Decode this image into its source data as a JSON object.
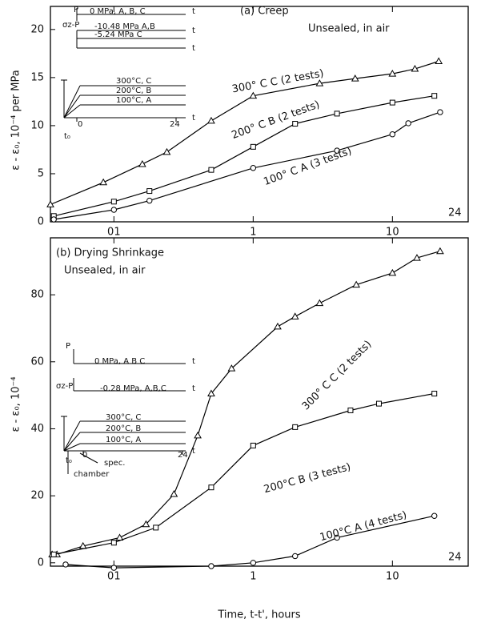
{
  "chart_data": [
    {
      "type": "line",
      "title": "(a)  Creep",
      "subtitle": "Unsealed, in air",
      "y_label": "ε - ε₀,  10⁻⁴ per MPa",
      "x_scale": "log",
      "color": "#000000",
      "xlim": [
        0.035,
        35
      ],
      "ylim": [
        0,
        22.4
      ],
      "xticks": [
        {
          "value": 0.1,
          "label": "01"
        },
        1,
        10
      ],
      "yticks": [
        0,
        5,
        10,
        15,
        20
      ],
      "series": [
        {
          "name": "300° C   C (2 tests)",
          "marker": "triangle",
          "x": [
            0.035,
            0.084,
            0.16,
            0.24,
            0.5,
            1,
            3,
            5.4,
            10,
            14.5,
            21.5
          ],
          "values": [
            1.8,
            4.1,
            6.0,
            7.25,
            10.5,
            13.1,
            14.4,
            14.9,
            15.4,
            15.9,
            16.7
          ]
        },
        {
          "name": "200° C   B (2 tests)",
          "marker": "square",
          "x": [
            0.037,
            0.1,
            0.18,
            0.5,
            1,
            2,
            4,
            10,
            20
          ],
          "values": [
            0.6,
            2.1,
            3.2,
            5.4,
            7.8,
            10.2,
            11.25,
            12.4,
            13.1
          ]
        },
        {
          "name": "100° C   A (3 tests)",
          "marker": "circle",
          "x": [
            0.037,
            0.1,
            0.18,
            1,
            4,
            10,
            13,
            22
          ],
          "values": [
            0.25,
            1.25,
            2.2,
            5.6,
            7.4,
            9.1,
            10.25,
            11.4
          ]
        }
      ],
      "annotations": [
        "24",
        "P",
        "σz-P",
        "0  MPa,  A, B, C",
        "-10.48  MPa  A,B",
        "-5.24  MPa  C",
        "300°C,  C",
        "200°C,  B",
        "100°C,  A",
        "t",
        "t",
        "t",
        "t",
        "0",
        "24",
        "t₀"
      ]
    },
    {
      "type": "line",
      "title": "(b) Drying Shrinkage",
      "subtitle": "Unsealed, in air",
      "y_label": "ε - ε₀,  10⁻⁴",
      "x_label": "Time,  t-t',  hours",
      "x_scale": "log",
      "color": "#000000",
      "xlim": [
        0.035,
        35
      ],
      "ylim": [
        -1,
        97
      ],
      "xticks": [
        {
          "value": 0.1,
          "label": "01"
        },
        1,
        10
      ],
      "yticks": [
        0,
        20,
        40,
        60,
        80
      ],
      "series": [
        {
          "name": "300° C   C (2 tests)",
          "marker": "triangle",
          "x": [
            0.036,
            0.039,
            0.06,
            0.11,
            0.17,
            0.27,
            0.4,
            0.5,
            0.7,
            1.5,
            2,
            3,
            5.5,
            10,
            15,
            22
          ],
          "values": [
            2.5,
            2.5,
            5,
            7.5,
            11.5,
            20.5,
            38,
            50.5,
            58,
            70.5,
            73.5,
            77.5,
            83,
            86.5,
            91,
            93
          ]
        },
        {
          "name": "200°C   B (3 tests)",
          "marker": "square",
          "x": [
            0.037,
            0.1,
            0.2,
            0.5,
            1,
            2,
            5,
            8,
            20
          ],
          "values": [
            2.5,
            6,
            10.5,
            22.5,
            35,
            40.5,
            45.5,
            47.5,
            50.5
          ]
        },
        {
          "name": "100°C   A (4 tests)",
          "marker": "circle",
          "x": [
            0.045,
            0.1,
            0.5,
            1,
            2,
            4,
            20
          ],
          "values": [
            -0.5,
            -1.5,
            -1,
            0,
            2,
            7.5,
            14
          ]
        }
      ],
      "annotations": [
        "24",
        "P",
        "σz-P",
        "0  MPa,   A B C",
        "-0.28  MPa, A,B,C",
        "300°C,   C",
        "200°C,   B",
        "100°C,   A",
        "t",
        "t",
        "t",
        "0",
        "24",
        "spec.",
        "chamber",
        "t₀"
      ]
    }
  ]
}
